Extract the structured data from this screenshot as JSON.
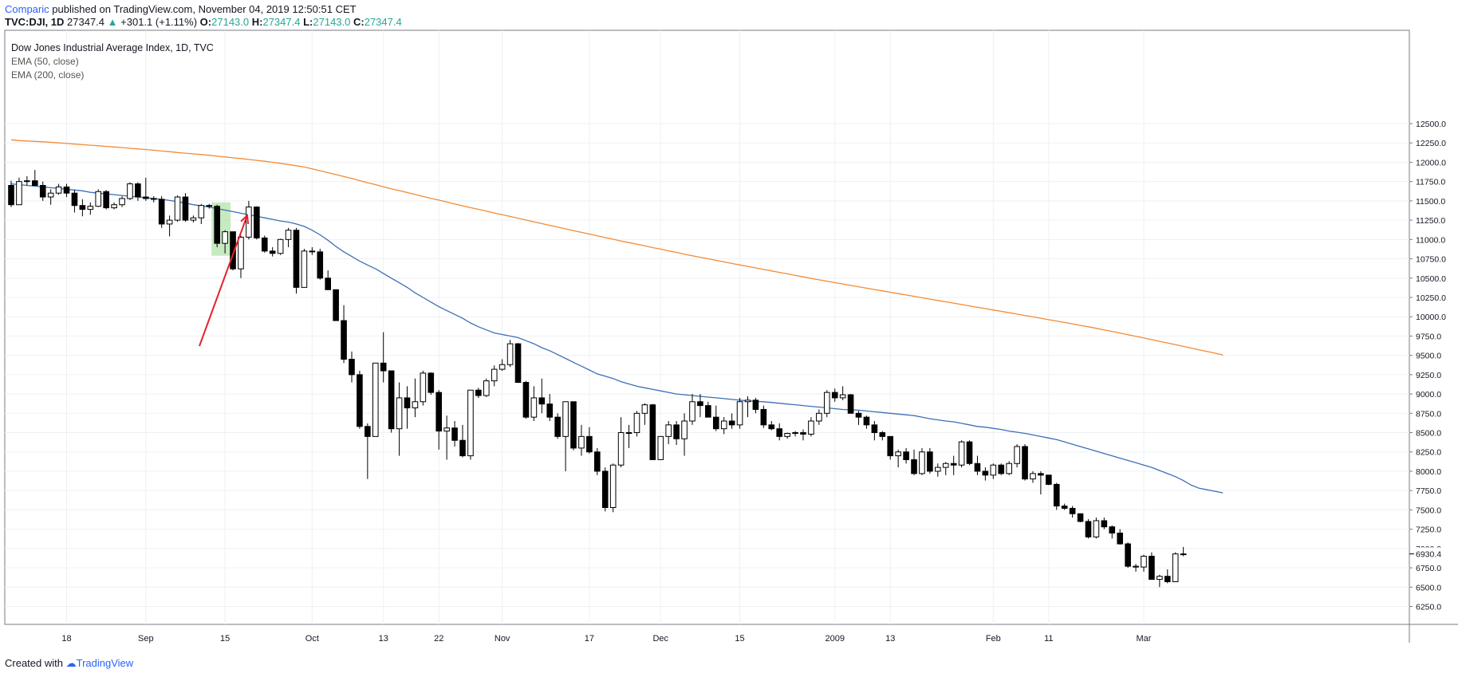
{
  "header": {
    "publisher": "Comparic",
    "published_text": "published on TradingView.com, November 04, 2019 12:50:51 CET",
    "symbol": "TVC:DJI, 1D",
    "last": "27347.4",
    "change": "+301.1 (+1.11%)",
    "o_label": "O:",
    "o": "27143.0",
    "h_label": "H:",
    "h": "27347.4",
    "l_label": "L:",
    "l": "27143.0",
    "c_label": "C:",
    "c": "27347.4"
  },
  "legend": {
    "title": "Dow Jones Industrial Average Index, 1D, TVC",
    "ema50": "EMA (50, close)",
    "ema200": "EMA (200, close)"
  },
  "footer": {
    "created_with": "Created with",
    "brand": "TradingView"
  },
  "colors": {
    "ema50": "#3d6fb6",
    "ema200": "#f28b35",
    "arrow": "#e8202a",
    "highlight": "#b9e5b0",
    "grid": "#eef0f3"
  },
  "chart_data": {
    "type": "candlestick",
    "y_range": [
      6100,
      12750
    ],
    "y_ticks": [
      6250,
      6500,
      6750,
      7000,
      7250,
      7500,
      7750,
      8000,
      8250,
      8500,
      8750,
      9000,
      9250,
      9500,
      9750,
      10000,
      10250,
      10500,
      10750,
      11000,
      11250,
      11500,
      11750,
      12000,
      12250,
      12500
    ],
    "last_price_label": "6930.4",
    "x_labels": [
      {
        "i": 7,
        "label": "18"
      },
      {
        "i": 17,
        "label": "Sep"
      },
      {
        "i": 27,
        "label": "15"
      },
      {
        "i": 38,
        "label": "Oct"
      },
      {
        "i": 47,
        "label": "13"
      },
      {
        "i": 54,
        "label": "22"
      },
      {
        "i": 62,
        "label": "Nov"
      },
      {
        "i": 73,
        "label": "17"
      },
      {
        "i": 82,
        "label": "Dec"
      },
      {
        "i": 92,
        "label": "15"
      },
      {
        "i": 104,
        "label": "2009"
      },
      {
        "i": 111,
        "label": "13"
      },
      {
        "i": 124,
        "label": "Feb"
      },
      {
        "i": 131,
        "label": "11"
      },
      {
        "i": 143,
        "label": "Mar"
      }
    ],
    "highlight_range": [
      26,
      27
    ],
    "candles": [
      [
        11700,
        11760,
        11420,
        11450
      ],
      [
        11450,
        11800,
        11450,
        11750
      ],
      [
        11750,
        11820,
        11700,
        11760
      ],
      [
        11760,
        11900,
        11700,
        11700
      ],
      [
        11700,
        11750,
        11500,
        11550
      ],
      [
        11550,
        11650,
        11450,
        11600
      ],
      [
        11600,
        11720,
        11580,
        11680
      ],
      [
        11680,
        11720,
        11550,
        11600
      ],
      [
        11600,
        11640,
        11350,
        11440
      ],
      [
        11440,
        11520,
        11300,
        11390
      ],
      [
        11390,
        11480,
        11320,
        11430
      ],
      [
        11430,
        11650,
        11420,
        11620
      ],
      [
        11620,
        11640,
        11390,
        11410
      ],
      [
        11410,
        11480,
        11390,
        11450
      ],
      [
        11450,
        11560,
        11420,
        11530
      ],
      [
        11530,
        11740,
        11510,
        11720
      ],
      [
        11720,
        11740,
        11500,
        11550
      ],
      [
        11550,
        11800,
        11500,
        11530
      ],
      [
        11530,
        11560,
        11480,
        11520
      ],
      [
        11520,
        11560,
        11150,
        11200
      ],
      [
        11200,
        11310,
        11040,
        11250
      ],
      [
        11250,
        11570,
        11230,
        11550
      ],
      [
        11550,
        11600,
        11230,
        11250
      ],
      [
        11250,
        11310,
        11220,
        11280
      ],
      [
        11280,
        11460,
        11200,
        11440
      ],
      [
        11440,
        11460,
        11400,
        11430
      ],
      [
        11430,
        11450,
        10900,
        10950
      ],
      [
        10950,
        11120,
        10820,
        11100
      ],
      [
        11100,
        11100,
        10600,
        10620
      ],
      [
        10620,
        11050,
        10500,
        11030
      ],
      [
        11030,
        11500,
        11000,
        11420
      ],
      [
        11420,
        11430,
        11000,
        11020
      ],
      [
        11020,
        11050,
        10830,
        10850
      ],
      [
        10850,
        10900,
        10780,
        10820
      ],
      [
        10820,
        11010,
        10800,
        11000
      ],
      [
        11000,
        11150,
        10900,
        11120
      ],
      [
        11120,
        11150,
        10300,
        10380
      ],
      [
        10380,
        10880,
        10380,
        10850
      ],
      [
        10850,
        10900,
        10800,
        10840
      ],
      [
        10840,
        10880,
        10480,
        10500
      ],
      [
        10500,
        10600,
        10350,
        10350
      ],
      [
        10350,
        10350,
        9950,
        9950
      ],
      [
        9950,
        10150,
        9400,
        9450
      ],
      [
        9450,
        9550,
        9150,
        9250
      ],
      [
        9250,
        9300,
        8550,
        8580
      ],
      [
        8580,
        8620,
        7900,
        8450
      ],
      [
        8450,
        9400,
        8450,
        9400
      ],
      [
        9400,
        9800,
        9150,
        9300
      ],
      [
        9300,
        9300,
        8500,
        8550
      ],
      [
        8550,
        9150,
        8200,
        8950
      ],
      [
        8950,
        9100,
        8550,
        8820
      ],
      [
        8820,
        9200,
        8700,
        8900
      ],
      [
        8900,
        9300,
        8850,
        9270
      ],
      [
        9270,
        9280,
        8990,
        9020
      ],
      [
        9020,
        9050,
        8280,
        8520
      ],
      [
        8520,
        8720,
        8150,
        8560
      ],
      [
        8560,
        8650,
        8320,
        8400
      ],
      [
        8400,
        8600,
        8180,
        8200
      ],
      [
        8200,
        9050,
        8150,
        9050
      ],
      [
        9050,
        9080,
        8950,
        8980
      ],
      [
        8980,
        9200,
        8960,
        9170
      ],
      [
        9170,
        9370,
        9100,
        9320
      ],
      [
        9320,
        9450,
        9300,
        9380
      ],
      [
        9380,
        9700,
        9350,
        9650
      ],
      [
        9650,
        9660,
        9150,
        9150
      ],
      [
        9150,
        9170,
        8680,
        8700
      ],
      [
        8700,
        9100,
        8650,
        8950
      ],
      [
        8950,
        9200,
        8750,
        8870
      ],
      [
        8870,
        9000,
        8650,
        8700
      ],
      [
        8700,
        8750,
        8420,
        8450
      ],
      [
        8450,
        8900,
        8000,
        8900
      ],
      [
        8900,
        8900,
        8270,
        8300
      ],
      [
        8300,
        8600,
        8200,
        8450
      ],
      [
        8450,
        8570,
        8230,
        8250
      ],
      [
        8250,
        8300,
        7950,
        8000
      ],
      [
        8000,
        8050,
        7480,
        7530
      ],
      [
        7530,
        8100,
        7470,
        8080
      ],
      [
        8080,
        8700,
        8050,
        8500
      ],
      [
        8500,
        8600,
        8300,
        8500
      ],
      [
        8500,
        8780,
        8450,
        8750
      ],
      [
        8750,
        8880,
        8600,
        8860
      ],
      [
        8860,
        8870,
        8150,
        8150
      ],
      [
        8150,
        8450,
        8150,
        8450
      ],
      [
        8450,
        8650,
        8350,
        8600
      ],
      [
        8600,
        8650,
        8340,
        8420
      ],
      [
        8420,
        8750,
        8200,
        8650
      ],
      [
        8650,
        9000,
        8600,
        8900
      ],
      [
        8900,
        9000,
        8700,
        8850
      ],
      [
        8850,
        8900,
        8750,
        8700
      ],
      [
        8700,
        8850,
        8520,
        8550
      ],
      [
        8550,
        8700,
        8480,
        8650
      ],
      [
        8650,
        8750,
        8550,
        8600
      ],
      [
        8600,
        8950,
        8550,
        8900
      ],
      [
        8900,
        8970,
        8700,
        8920
      ],
      [
        8920,
        8950,
        8750,
        8800
      ],
      [
        8800,
        8850,
        8560,
        8600
      ],
      [
        8600,
        8650,
        8530,
        8550
      ],
      [
        8550,
        8620,
        8400,
        8450
      ],
      [
        8450,
        8500,
        8420,
        8490
      ],
      [
        8490,
        8520,
        8450,
        8500
      ],
      [
        8500,
        8540,
        8400,
        8480
      ],
      [
        8480,
        8700,
        8450,
        8650
      ],
      [
        8650,
        8800,
        8600,
        8750
      ],
      [
        8750,
        9050,
        8700,
        9020
      ],
      [
        9020,
        9070,
        8900,
        8950
      ],
      [
        8950,
        9100,
        8920,
        8990
      ],
      [
        8990,
        9000,
        8750,
        8750
      ],
      [
        8750,
        8780,
        8600,
        8700
      ],
      [
        8700,
        8720,
        8550,
        8600
      ],
      [
        8600,
        8650,
        8400,
        8500
      ],
      [
        8500,
        8520,
        8400,
        8450
      ],
      [
        8450,
        8450,
        8150,
        8200
      ],
      [
        8200,
        8280,
        8050,
        8250
      ],
      [
        8250,
        8300,
        8100,
        8150
      ],
      [
        8150,
        8280,
        7950,
        7970
      ],
      [
        7970,
        8300,
        7950,
        8250
      ],
      [
        8250,
        8300,
        7970,
        8000
      ],
      [
        8000,
        8100,
        7930,
        8050
      ],
      [
        8050,
        8120,
        7950,
        8100
      ],
      [
        8100,
        8200,
        7950,
        8080
      ],
      [
        8080,
        8400,
        8050,
        8380
      ],
      [
        8380,
        8400,
        8080,
        8100
      ],
      [
        8100,
        8200,
        7950,
        8000
      ],
      [
        8000,
        8050,
        7880,
        7950
      ],
      [
        7950,
        8100,
        7900,
        8080
      ],
      [
        8080,
        8100,
        7950,
        7970
      ],
      [
        7970,
        8130,
        7950,
        8100
      ],
      [
        8100,
        8350,
        8050,
        8320
      ],
      [
        8320,
        8350,
        7880,
        7900
      ],
      [
        7900,
        8000,
        7850,
        7970
      ],
      [
        7970,
        8000,
        7700,
        7950
      ],
      [
        7950,
        7950,
        7820,
        7830
      ],
      [
        7830,
        7850,
        7500,
        7550
      ],
      [
        7550,
        7580,
        7500,
        7520
      ],
      [
        7520,
        7550,
        7400,
        7450
      ],
      [
        7450,
        7450,
        7340,
        7350
      ],
      [
        7350,
        7380,
        7130,
        7150
      ],
      [
        7150,
        7400,
        7130,
        7360
      ],
      [
        7360,
        7400,
        7250,
        7280
      ],
      [
        7280,
        7300,
        7130,
        7200
      ],
      [
        7200,
        7250,
        7050,
        7060
      ],
      [
        7060,
        7080,
        6750,
        6770
      ],
      [
        6770,
        6800,
        6700,
        6760
      ],
      [
        6760,
        6920,
        6700,
        6900
      ],
      [
        6900,
        6950,
        6600,
        6600
      ],
      [
        6600,
        6660,
        6500,
        6640
      ],
      [
        6640,
        6730,
        6550,
        6570
      ],
      [
        6570,
        6950,
        6570,
        6930
      ],
      [
        6930,
        7020,
        6900,
        6930
      ]
    ],
    "ema50": [
      11720,
      11710,
      11700,
      11690,
      11680,
      11670,
      11660,
      11650,
      11640,
      11630,
      11610,
      11600,
      11590,
      11580,
      11570,
      11560,
      11550,
      11540,
      11530,
      11520,
      11505,
      11490,
      11470,
      11450,
      11435,
      11420,
      11400,
      11380,
      11360,
      11340,
      11320,
      11300,
      11280,
      11260,
      11240,
      11225,
      11200,
      11170,
      11120,
      11060,
      10990,
      10910,
      10840,
      10780,
      10720,
      10670,
      10620,
      10560,
      10500,
      10440,
      10380,
      10310,
      10250,
      10190,
      10130,
      10080,
      10030,
      9980,
      9920,
      9870,
      9830,
      9790,
      9770,
      9750,
      9730,
      9690,
      9650,
      9600,
      9560,
      9510,
      9460,
      9410,
      9360,
      9310,
      9260,
      9230,
      9200,
      9160,
      9130,
      9100,
      9080,
      9060,
      9040,
      9020,
      9000,
      8990,
      8980,
      8970,
      8960,
      8950,
      8940,
      8930,
      8920,
      8910,
      8905,
      8900,
      8890,
      8880,
      8870,
      8860,
      8850,
      8840,
      8830,
      8820,
      8810,
      8800,
      8795,
      8790,
      8780,
      8770,
      8760,
      8750,
      8740,
      8730,
      8720,
      8700,
      8680,
      8665,
      8650,
      8640,
      8620,
      8600,
      8580,
      8570,
      8555,
      8540,
      8520,
      8505,
      8490,
      8470,
      8450,
      8430,
      8410,
      8380,
      8350,
      8320,
      8290,
      8260,
      8230,
      8200,
      8170,
      8140,
      8110,
      8080,
      8050,
      8010,
      7970,
      7930,
      7880,
      7820,
      7780,
      7760,
      7740,
      7720
    ],
    "ema200": [
      12290,
      12280,
      12275,
      12270,
      12265,
      12258,
      12250,
      12243,
      12235,
      12228,
      12220,
      12214,
      12205,
      12198,
      12190,
      12180,
      12172,
      12165,
      12155,
      12145,
      12137,
      12125,
      12117,
      12108,
      12100,
      12090,
      12078,
      12069,
      12057,
      12048,
      12035,
      12024,
      12013,
      11999,
      11986,
      11970,
      11955,
      11938,
      11915,
      11890,
      11865,
      11840,
      11815,
      11790,
      11762,
      11735,
      11710,
      11683,
      11657,
      11633,
      11608,
      11582,
      11557,
      11532,
      11510,
      11485,
      11460,
      11436,
      11412,
      11390,
      11367,
      11343,
      11320,
      11298,
      11275,
      11252,
      11228,
      11206,
      11183,
      11160,
      11137,
      11115,
      11092,
      11070,
      11048,
      11025,
      11003,
      10980,
      10960,
      10938,
      10918,
      10895,
      10875,
      10853,
      10833,
      10810,
      10790,
      10770,
      10750,
      10730,
      10710,
      10690,
      10670,
      10652,
      10632,
      10612,
      10594,
      10574,
      10555,
      10535,
      10516,
      10497,
      10478,
      10460,
      10442,
      10424,
      10406,
      10388,
      10370,
      10352,
      10334,
      10317,
      10299,
      10282,
      10264,
      10246,
      10228,
      10211,
      10193,
      10176,
      10158,
      10140,
      10122,
      10105,
      10087,
      10070,
      10052,
      10034,
      10016,
      9998,
      9980,
      9962,
      9944,
      9926,
      9908,
      9889,
      9870,
      9850,
      9830,
      9810,
      9789,
      9768,
      9747,
      9726,
      9704,
      9682,
      9660,
      9638,
      9616,
      9594,
      9572,
      9550,
      9528,
      9506
    ]
  }
}
